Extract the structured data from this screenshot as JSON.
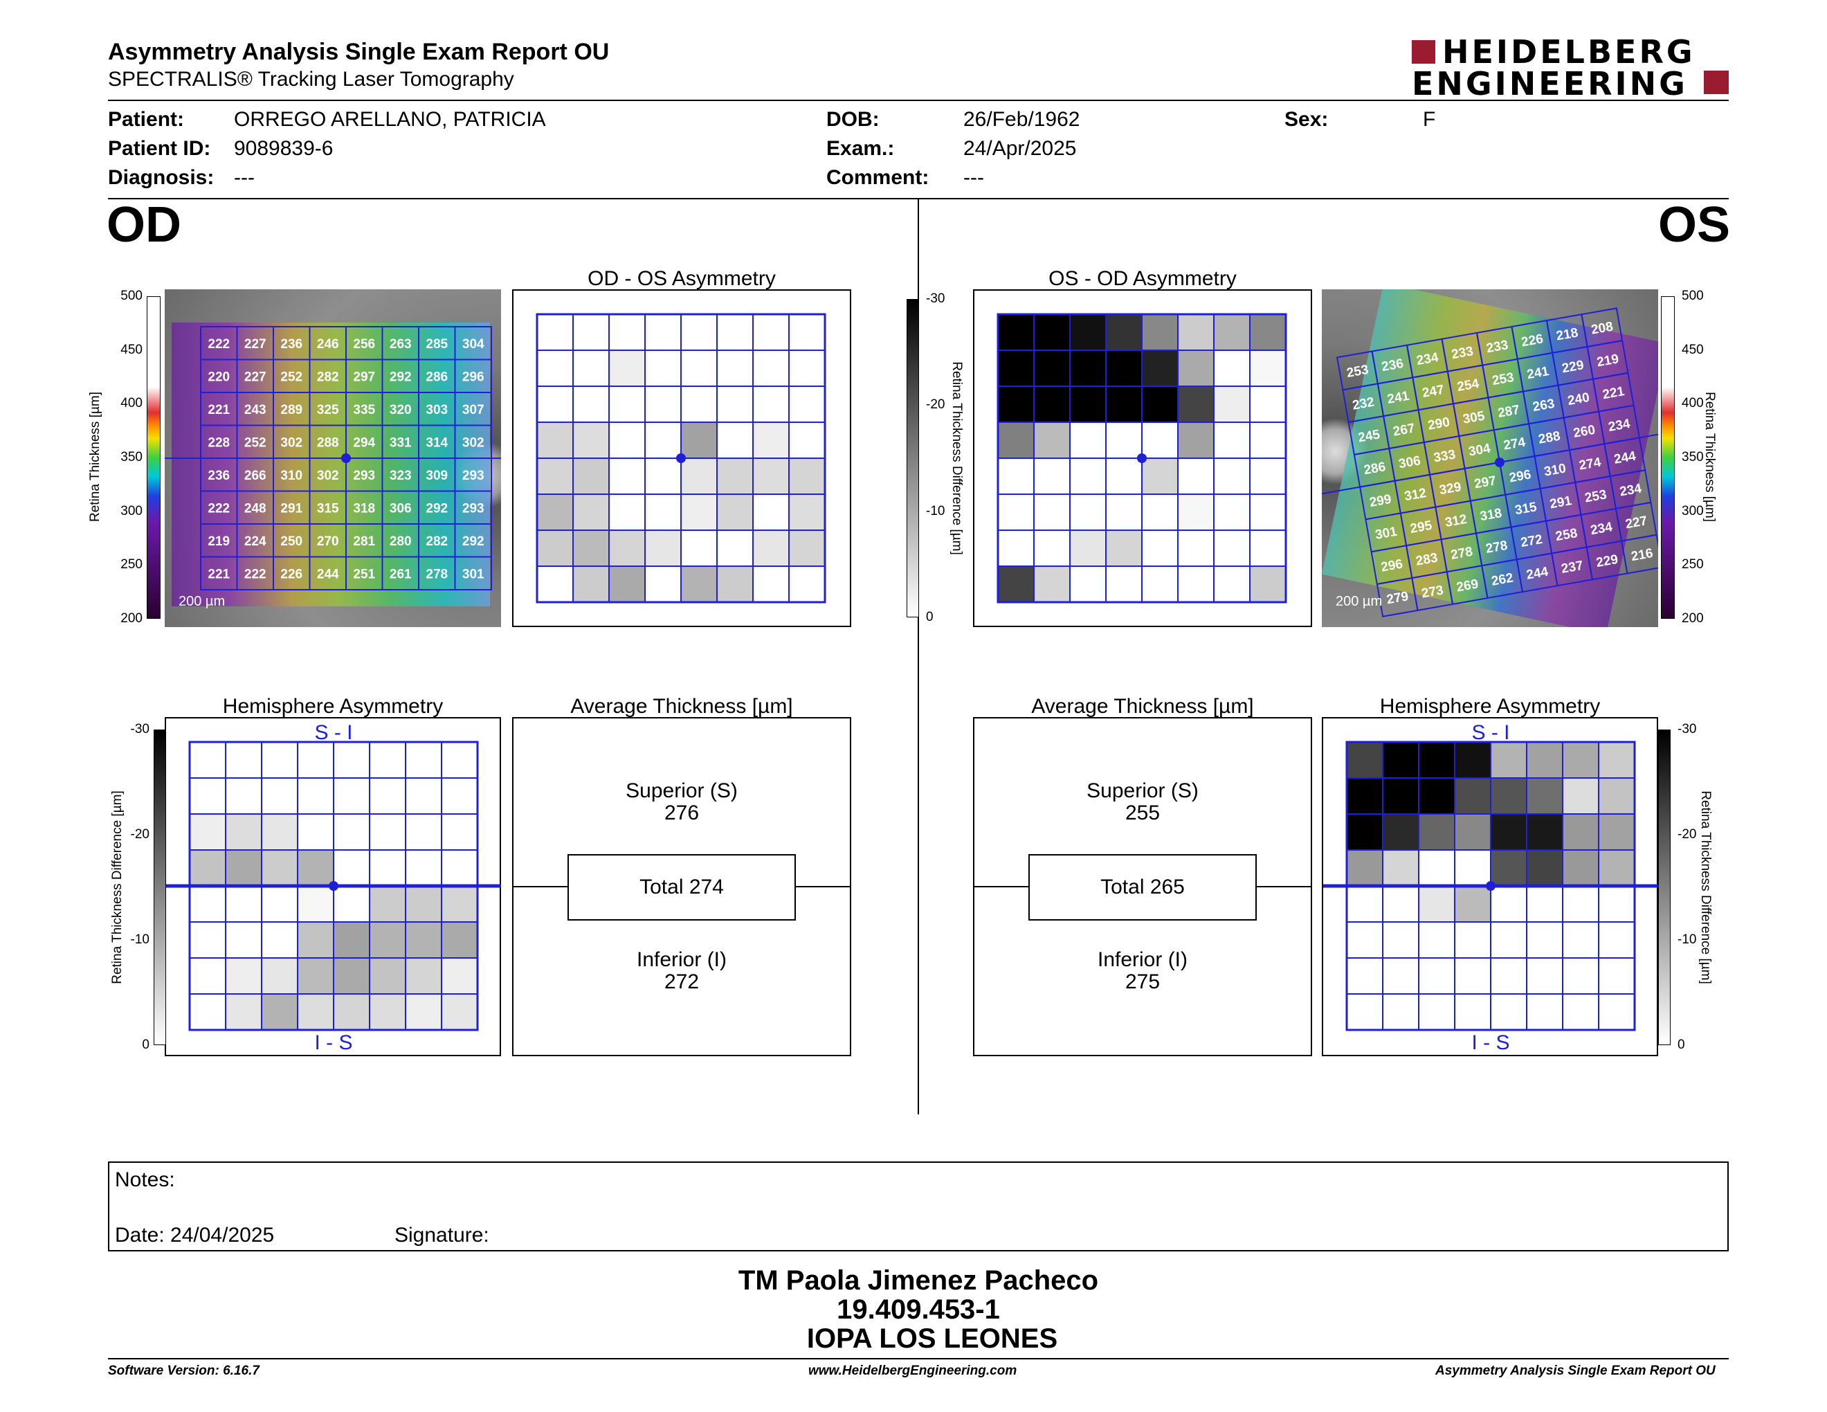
{
  "header": {
    "title": "Asymmetry Analysis Single Exam Report OU",
    "subtitle": "SPECTRALIS® Tracking Laser Tomography",
    "logo_line1": "HEIDELBERG",
    "logo_line2": "ENGINEERING"
  },
  "patient": {
    "patient_label": "Patient:",
    "patient_value": "ORREGO ARELLANO, PATRICIA",
    "id_label": "Patient ID:",
    "id_value": "9089839-6",
    "diagnosis_label": "Diagnosis:",
    "diagnosis_value": "---",
    "dob_label": "DOB:",
    "dob_value": "26/Feb/1962",
    "exam_label": "Exam.:",
    "exam_value": "24/Apr/2025",
    "comment_label": "Comment:",
    "comment_value": "---",
    "sex_label": "Sex:",
    "sex_value": "F"
  },
  "od": {
    "eye_label": "OD",
    "asym_title": "OD - OS Asymmetry",
    "hemi_title": "Hemisphere Asymmetry",
    "avg_title": "Average Thickness [µm]",
    "superior_label": "Superior (S)",
    "superior_value": "276",
    "total_label": "Total 274",
    "inferior_label": "Inferior (I)",
    "inferior_value": "272",
    "scale_bar": "200 µm",
    "thickness_axis": "Retina Thickness [µm]",
    "diff_axis": "Retina Thickness Difference [µm]",
    "thickness_ticks": [
      "500",
      "450",
      "400",
      "350",
      "300",
      "250",
      "200"
    ],
    "diff_ticks": [
      "-30",
      "-20",
      "-10",
      "0"
    ],
    "si_label": "S - I",
    "is_label": "I - S",
    "thickness_grid": [
      [
        "222",
        "227",
        "236",
        "246",
        "256",
        "263",
        "285",
        "304"
      ],
      [
        "220",
        "227",
        "252",
        "282",
        "297",
        "292",
        "286",
        "296"
      ],
      [
        "221",
        "243",
        "289",
        "325",
        "335",
        "320",
        "303",
        "307"
      ],
      [
        "228",
        "252",
        "302",
        "288",
        "294",
        "331",
        "314",
        "302"
      ],
      [
        "236",
        "266",
        "310",
        "302",
        "293",
        "323",
        "309",
        "293"
      ],
      [
        "222",
        "248",
        "291",
        "315",
        "318",
        "306",
        "292",
        "293"
      ],
      [
        "219",
        "224",
        "250",
        "270",
        "281",
        "280",
        "282",
        "292"
      ],
      [
        "221",
        "222",
        "226",
        "244",
        "251",
        "261",
        "278",
        "301"
      ]
    ],
    "asym_grid": [
      [
        0,
        0,
        0,
        0,
        0,
        0,
        0,
        0
      ],
      [
        0,
        0,
        2,
        0,
        0,
        0,
        0,
        0
      ],
      [
        0,
        0,
        0,
        0,
        0,
        0,
        0,
        0
      ],
      [
        5,
        4,
        0,
        0,
        11,
        0,
        2,
        0
      ],
      [
        5,
        6,
        0,
        0,
        3,
        5,
        4,
        5
      ],
      [
        8,
        5,
        0,
        0,
        2,
        5,
        0,
        4
      ],
      [
        6,
        8,
        5,
        3,
        0,
        0,
        3,
        5
      ],
      [
        0,
        6,
        10,
        0,
        9,
        6,
        0,
        0
      ]
    ],
    "hemi_grid": [
      [
        0,
        0,
        0,
        0,
        0,
        0,
        0,
        0
      ],
      [
        0,
        0,
        0,
        0,
        0,
        0,
        0,
        0
      ],
      [
        2,
        4,
        3,
        0,
        0,
        0,
        0,
        0
      ],
      [
        7,
        10,
        6,
        9,
        0,
        0,
        0,
        0
      ],
      [
        0,
        0,
        0,
        1,
        0,
        6,
        6,
        5
      ],
      [
        0,
        0,
        0,
        7,
        11,
        9,
        9,
        10
      ],
      [
        0,
        2,
        3,
        8,
        10,
        7,
        5,
        2
      ],
      [
        0,
        3,
        9,
        4,
        5,
        4,
        2,
        3
      ]
    ]
  },
  "os": {
    "eye_label": "OS",
    "asym_title": "OS - OD Asymmetry",
    "hemi_title": "Hemisphere Asymmetry",
    "avg_title": "Average Thickness [µm]",
    "superior_label": "Superior (S)",
    "superior_value": "255",
    "total_label": "Total 265",
    "inferior_label": "Inferior (I)",
    "inferior_value": "275",
    "scale_bar": "200 µm",
    "thickness_axis": "Retina Thickness [µm]",
    "diff_axis": "Retina Thickness Difference [µm]",
    "thickness_ticks": [
      "500",
      "450",
      "400",
      "350",
      "300",
      "250",
      "200"
    ],
    "diff_ticks": [
      "-30",
      "-20",
      "-10",
      "0"
    ],
    "si_label": "S - I",
    "is_label": "I - S",
    "thickness_grid": [
      [
        "253",
        "236",
        "234",
        "233",
        "233",
        "226",
        "218",
        "208"
      ],
      [
        "232",
        "241",
        "247",
        "254",
        "253",
        "241",
        "229",
        "219"
      ],
      [
        "245",
        "267",
        "290",
        "305",
        "287",
        "263",
        "240",
        "221"
      ],
      [
        "286",
        "306",
        "333",
        "304",
        "274",
        "288",
        "260",
        "234"
      ],
      [
        "299",
        "312",
        "329",
        "297",
        "296",
        "310",
        "274",
        "244"
      ],
      [
        "301",
        "295",
        "312",
        "318",
        "315",
        "291",
        "253",
        "234"
      ],
      [
        "296",
        "283",
        "278",
        "278",
        "272",
        "258",
        "234",
        "227"
      ],
      [
        "279",
        "273",
        "269",
        "262",
        "244",
        "237",
        "229",
        "216"
      ]
    ],
    "asym_grid": [
      [
        30,
        30,
        28,
        24,
        14,
        6,
        9,
        14
      ],
      [
        30,
        30,
        30,
        30,
        26,
        10,
        0,
        1
      ],
      [
        30,
        30,
        30,
        30,
        30,
        22,
        2,
        0
      ],
      [
        15,
        8,
        0,
        0,
        0,
        11,
        0,
        0
      ],
      [
        0,
        0,
        0,
        0,
        5,
        0,
        0,
        0
      ],
      [
        0,
        0,
        0,
        0,
        0,
        1,
        0,
        0
      ],
      [
        0,
        0,
        3,
        5,
        0,
        0,
        0,
        0
      ],
      [
        22,
        5,
        0,
        0,
        0,
        0,
        0,
        6
      ]
    ],
    "hemi_grid": [
      [
        22,
        30,
        30,
        28,
        9,
        11,
        10,
        6
      ],
      [
        30,
        30,
        30,
        21,
        20,
        17,
        4,
        7
      ],
      [
        30,
        25,
        18,
        14,
        27,
        27,
        12,
        11
      ],
      [
        12,
        5,
        0,
        0,
        20,
        22,
        12,
        9
      ],
      [
        0,
        0,
        3,
        8,
        0,
        0,
        0,
        0
      ],
      [
        0,
        0,
        0,
        0,
        0,
        0,
        0,
        0
      ],
      [
        0,
        0,
        0,
        0,
        0,
        0,
        0,
        0
      ],
      [
        0,
        0,
        0,
        0,
        0,
        0,
        0,
        0
      ]
    ]
  },
  "notes": {
    "notes_label": "Notes:",
    "date_label": "Date: 24/04/2025",
    "signature_label": "Signature:"
  },
  "signature_block": {
    "name": "TM Paola Jimenez Pacheco",
    "rut": "19.409.453-1",
    "institution": "IOPA LOS LEONES"
  },
  "footer": {
    "software": "Software Version: 6.16.7",
    "website": "www.HeidelbergEngineering.com",
    "report_name": "Asymmetry Analysis Single Exam Report OU"
  },
  "colors": {
    "grid_blue": "#1f1fd8",
    "brand_red": "#9b1b30"
  }
}
